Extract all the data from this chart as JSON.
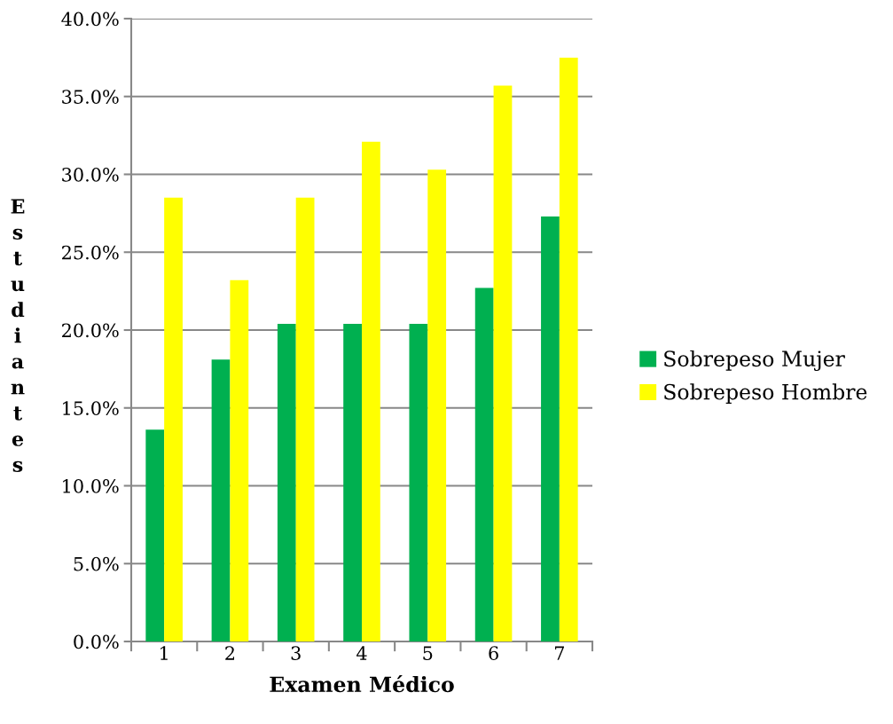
{
  "chart_data": {
    "type": "bar",
    "xlabel": "Examen Médico",
    "ylabel": "Estudiantes",
    "categories": [
      "1",
      "2",
      "3",
      "4",
      "5",
      "6",
      "7"
    ],
    "series": [
      {
        "name": "Sobrepeso Mujer",
        "color": "#00b050",
        "values": [
          13.6,
          18.1,
          20.4,
          20.4,
          20.4,
          22.7,
          27.3
        ]
      },
      {
        "name": "Sobrepeso Hombre",
        "color": "#ffff00",
        "values": [
          28.5,
          23.2,
          28.5,
          32.1,
          30.3,
          35.7,
          37.5
        ]
      }
    ],
    "ylim": [
      0,
      40
    ],
    "yticks": [
      {
        "value": 0,
        "label": "0.0%"
      },
      {
        "value": 5,
        "label": "5.0%"
      },
      {
        "value": 10,
        "label": "10.0%"
      },
      {
        "value": 15,
        "label": "15.0%"
      },
      {
        "value": 20,
        "label": "20.0%"
      },
      {
        "value": 25,
        "label": "25.0%"
      },
      {
        "value": 30,
        "label": "30.0%"
      },
      {
        "value": 35,
        "label": "35.0%"
      },
      {
        "value": 40,
        "label": "40.0%"
      }
    ],
    "grid": "y",
    "legend": "right"
  }
}
